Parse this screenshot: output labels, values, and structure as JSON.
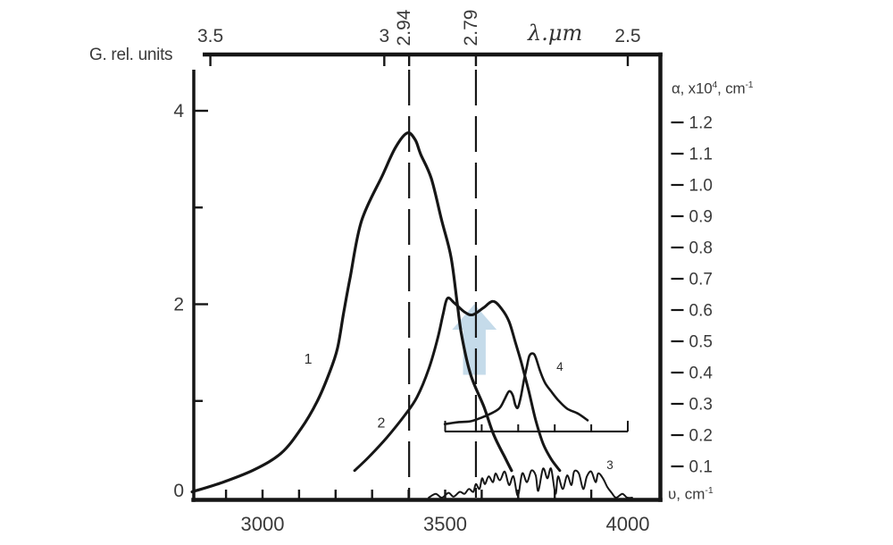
{
  "figure": {
    "background": "#ffffff",
    "ink_color": "#161616",
    "text_color": "#3a3a3a",
    "arrow_color": "#c5dbea"
  },
  "labels": {
    "g_axis": "G. rel. units",
    "lambda_axis": "λ.μm",
    "alpha_base1": "α, x10",
    "alpha_sup1": "4",
    "alpha_base2": ", cm",
    "alpha_sup2": "-1",
    "upsilon_base": "υ, cm",
    "upsilon_sup": "-1"
  },
  "chart_data": {
    "type": "line",
    "title": "",
    "x_axis": {
      "label": "υ, cm⁻¹",
      "range": [
        2810,
        4090
      ],
      "tick_marks": [
        2900,
        3000,
        3100,
        3200,
        3300,
        3400,
        3500,
        3600,
        3700,
        3800,
        3900
      ],
      "tick_labels": [
        "3000",
        "3500",
        "4000"
      ]
    },
    "top_x_axis": {
      "label": "λ.μm",
      "unit": "μm",
      "ticks": [
        {
          "um": "3.5",
          "rotated": false
        },
        {
          "um": "3",
          "rotated": false
        },
        {
          "um": "2.94",
          "rotated": true
        },
        {
          "um": "2.79",
          "rotated": true
        },
        {
          "um": "2.5",
          "rotated": false
        }
      ]
    },
    "left_y_axis": {
      "label": "G. rel. units",
      "range": [
        0,
        4.6
      ],
      "tick_marks": [
        1,
        2,
        3,
        4
      ],
      "tick_labels": [
        "0",
        "2",
        "4"
      ]
    },
    "right_y_axis": {
      "label": "α, x10⁴, cm⁻¹",
      "range": [
        0,
        1.29
      ],
      "tick_labels": [
        "1.2",
        "1.1",
        "1.0",
        "0.9",
        "0.8",
        "0.7",
        "0.6",
        "0.5",
        "0.4",
        "0.3",
        "0.2",
        "0.1"
      ]
    },
    "guides_um": [
      "2.94",
      "2.79"
    ],
    "arrow": {
      "at_wn": 3580,
      "tip_G": 2.0,
      "head_base_G": 1.737,
      "bottom_G": 1.27,
      "head_halfwidth_wn": 61,
      "shaft_halfwidth_wn": 31
    },
    "inset": {
      "baseline_G": 0.684,
      "from_wn": 3499,
      "to_wn": 4000,
      "ticks_wn": [
        3500,
        3600,
        3700,
        3800,
        3900,
        4000
      ],
      "note": "curve 4 plotted on inset relative scale"
    },
    "series": [
      {
        "name": "curve-1",
        "label": "1",
        "label_at": [
          3125,
          1.43
        ],
        "points": [
          [
            2807,
            0.06
          ],
          [
            2892,
            0.16
          ],
          [
            2978,
            0.29
          ],
          [
            3051,
            0.46
          ],
          [
            3105,
            0.71
          ],
          [
            3149,
            0.99
          ],
          [
            3181,
            1.27
          ],
          [
            3205,
            1.54
          ],
          [
            3222,
            1.91
          ],
          [
            3240,
            2.28
          ],
          [
            3271,
            2.86
          ],
          [
            3328,
            3.33
          ],
          [
            3364,
            3.62
          ],
          [
            3396,
            3.77
          ],
          [
            3418,
            3.7
          ],
          [
            3433,
            3.55
          ],
          [
            3462,
            3.3
          ],
          [
            3491,
            2.86
          ],
          [
            3516,
            2.49
          ],
          [
            3533,
            2.01
          ],
          [
            3545,
            1.68
          ],
          [
            3570,
            1.27
          ],
          [
            3606,
            0.94
          ],
          [
            3633,
            0.65
          ],
          [
            3663,
            0.42
          ],
          [
            3682,
            0.28
          ]
        ]
      },
      {
        "name": "curve-2",
        "label": "2",
        "label_at": [
          3325,
          0.77
        ],
        "points": [
          [
            3252,
            0.28
          ],
          [
            3291,
            0.42
          ],
          [
            3340,
            0.62
          ],
          [
            3389,
            0.85
          ],
          [
            3423,
            1.04
          ],
          [
            3455,
            1.33
          ],
          [
            3479,
            1.64
          ],
          [
            3494,
            1.89
          ],
          [
            3506,
            2.06
          ],
          [
            3526,
            2.01
          ],
          [
            3553,
            1.92
          ],
          [
            3575,
            1.89
          ],
          [
            3604,
            1.96
          ],
          [
            3631,
            2.03
          ],
          [
            3655,
            1.95
          ],
          [
            3675,
            1.82
          ],
          [
            3692,
            1.61
          ],
          [
            3709,
            1.39
          ],
          [
            3729,
            1.1
          ],
          [
            3748,
            0.8
          ],
          [
            3768,
            0.56
          ],
          [
            3790,
            0.4
          ],
          [
            3814,
            0.28
          ]
        ]
      },
      {
        "name": "curve-3",
        "label": "3",
        "label_at": [
          3951,
          0.34
        ],
        "points": [
          [
            3455,
            0.0
          ],
          [
            3474,
            0.04
          ],
          [
            3491,
            0.0
          ],
          [
            3509,
            0.05
          ],
          [
            3523,
            0.01
          ],
          [
            3540,
            0.06
          ],
          [
            3553,
            0.04
          ],
          [
            3565,
            0.09
          ],
          [
            3577,
            0.06
          ],
          [
            3584,
            0.14
          ],
          [
            3594,
            0.09
          ],
          [
            3601,
            0.2
          ],
          [
            3609,
            0.14
          ],
          [
            3619,
            0.22
          ],
          [
            3631,
            0.16
          ],
          [
            3638,
            0.25
          ],
          [
            3650,
            0.18
          ],
          [
            3663,
            0.27
          ],
          [
            3675,
            0.13
          ],
          [
            3687,
            0.22
          ],
          [
            3699,
            0.02
          ],
          [
            3711,
            0.25
          ],
          [
            3724,
            0.16
          ],
          [
            3736,
            0.28
          ],
          [
            3748,
            0.23
          ],
          [
            3755,
            0.07
          ],
          [
            3768,
            0.3
          ],
          [
            3780,
            0.2
          ],
          [
            3790,
            0.3
          ],
          [
            3802,
            0.04
          ],
          [
            3809,
            0.22
          ],
          [
            3822,
            0.09
          ],
          [
            3834,
            0.23
          ],
          [
            3846,
            0.13
          ],
          [
            3853,
            0.27
          ],
          [
            3866,
            0.25
          ],
          [
            3878,
            0.09
          ],
          [
            3888,
            0.22
          ],
          [
            3900,
            0.27
          ],
          [
            3912,
            0.16
          ],
          [
            3919,
            0.25
          ],
          [
            3932,
            0.2
          ],
          [
            3944,
            0.11
          ],
          [
            3956,
            0.05
          ],
          [
            3968,
            0.0
          ],
          [
            3985,
            0.04
          ],
          [
            3998,
            0.0
          ],
          [
            4012,
            0.0
          ]
        ]
      },
      {
        "name": "curve-4",
        "label": "4",
        "label_at": [
          3814,
          1.36
        ],
        "points": [
          [
            3499,
            0.76
          ],
          [
            3535,
            0.78
          ],
          [
            3570,
            0.79
          ],
          [
            3601,
            0.83
          ],
          [
            3631,
            0.88
          ],
          [
            3650,
            0.93
          ],
          [
            3663,
            1.02
          ],
          [
            3675,
            1.1
          ],
          [
            3685,
            1.06
          ],
          [
            3692,
            0.96
          ],
          [
            3699,
            0.93
          ],
          [
            3707,
            1.04
          ],
          [
            3716,
            1.22
          ],
          [
            3724,
            1.36
          ],
          [
            3731,
            1.47
          ],
          [
            3741,
            1.49
          ],
          [
            3748,
            1.45
          ],
          [
            3760,
            1.31
          ],
          [
            3773,
            1.19
          ],
          [
            3790,
            1.1
          ],
          [
            3809,
            1.01
          ],
          [
            3834,
            0.92
          ],
          [
            3863,
            0.87
          ],
          [
            3890,
            0.8
          ]
        ]
      }
    ]
  }
}
